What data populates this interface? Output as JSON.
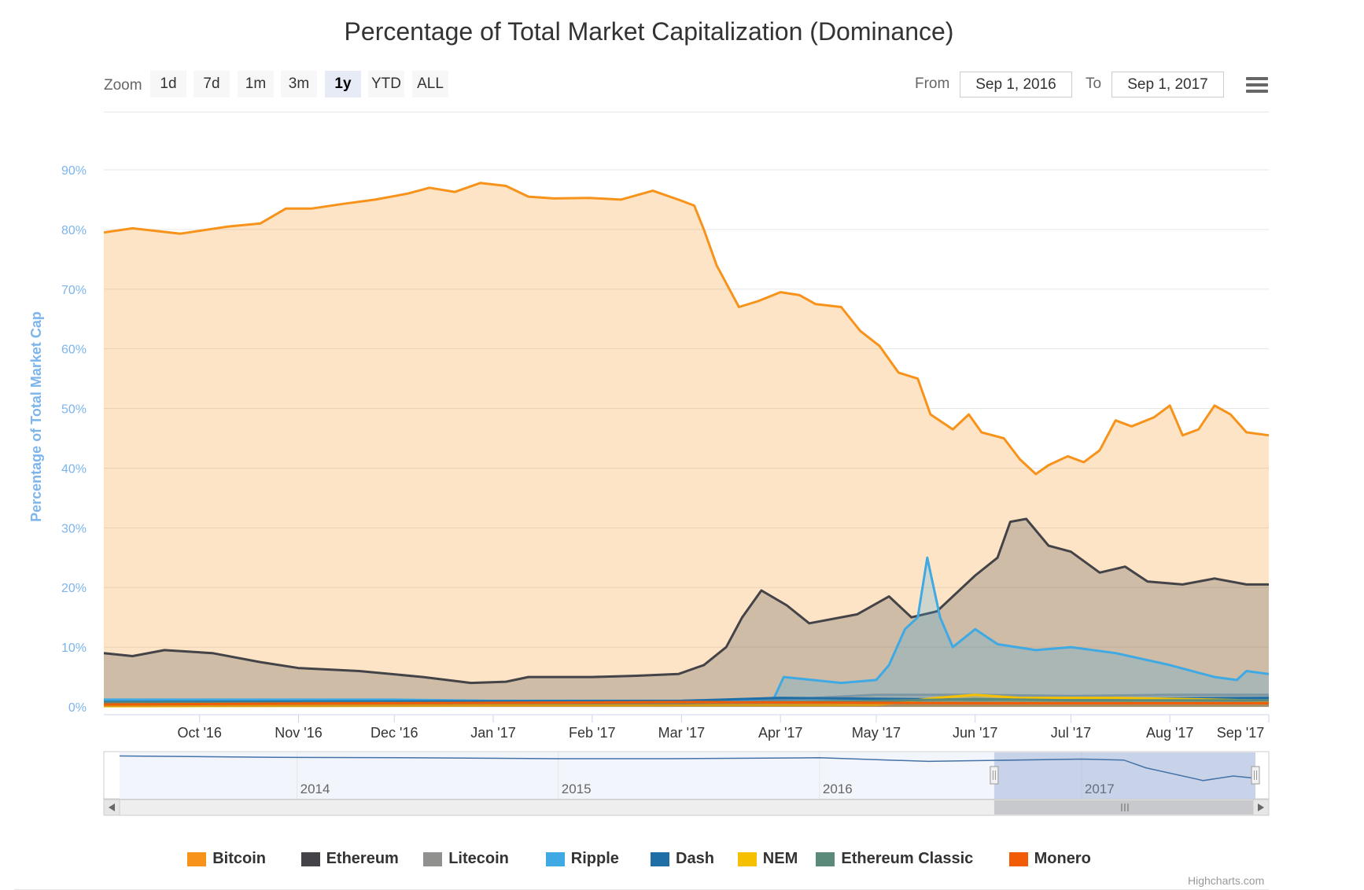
{
  "toolbar": {
    "zoom_label": "Zoom",
    "zoom_buttons": [
      "1d",
      "7d",
      "1m",
      "3m",
      "1y",
      "YTD",
      "ALL"
    ],
    "zoom_active": "1y",
    "from_label": "From",
    "from_value": "Sep 1, 2016",
    "to_label": "To",
    "to_value": "Sep 1, 2017",
    "menu_icon": "hamburger-menu-icon"
  },
  "credits": "Highcharts.com",
  "chart_data": {
    "type": "area",
    "title": "Percentage of Total Market Capitalization (Dominance)",
    "ylabel": "Percentage of Total Market Cap",
    "ylim": [
      0,
      90
    ],
    "yticks": [
      "0%",
      "10%",
      "20%",
      "30%",
      "40%",
      "50%",
      "60%",
      "70%",
      "80%",
      "90%"
    ],
    "x_range": [
      "2016-09-01",
      "2017-09-01"
    ],
    "xticks": [
      {
        "label": "Oct '16",
        "date": "2016-10-01"
      },
      {
        "label": "Nov '16",
        "date": "2016-11-01"
      },
      {
        "label": "Dec '16",
        "date": "2016-12-01"
      },
      {
        "label": "Jan '17",
        "date": "2017-01-01"
      },
      {
        "label": "Feb '17",
        "date": "2017-02-01"
      },
      {
        "label": "Mar '17",
        "date": "2017-03-01"
      },
      {
        "label": "Apr '17",
        "date": "2017-04-01"
      },
      {
        "label": "May '17",
        "date": "2017-05-01"
      },
      {
        "label": "Jun '17",
        "date": "2017-06-01"
      },
      {
        "label": "Jul '17",
        "date": "2017-07-01"
      },
      {
        "label": "Aug '17",
        "date": "2017-08-01"
      },
      {
        "label": "Sep '17",
        "date": "2017-09-01"
      }
    ],
    "grid": true,
    "legend_position": "bottom",
    "series": [
      {
        "name": "Bitcoin",
        "color": "#f7931a",
        "points": [
          [
            "2016-09-01",
            79.5
          ],
          [
            "2016-09-10",
            80.2
          ],
          [
            "2016-09-25",
            79.3
          ],
          [
            "2016-10-10",
            80.5
          ],
          [
            "2016-10-20",
            81.0
          ],
          [
            "2016-10-28",
            83.5
          ],
          [
            "2016-11-05",
            83.5
          ],
          [
            "2016-11-15",
            84.3
          ],
          [
            "2016-11-25",
            85.0
          ],
          [
            "2016-12-05",
            86.0
          ],
          [
            "2016-12-12",
            87.0
          ],
          [
            "2016-12-20",
            86.3
          ],
          [
            "2016-12-28",
            87.8
          ],
          [
            "2017-01-05",
            87.3
          ],
          [
            "2017-01-12",
            85.5
          ],
          [
            "2017-01-20",
            85.2
          ],
          [
            "2017-01-31",
            85.3
          ],
          [
            "2017-02-10",
            85.0
          ],
          [
            "2017-02-20",
            86.5
          ],
          [
            "2017-02-28",
            85.0
          ],
          [
            "2017-03-05",
            84.0
          ],
          [
            "2017-03-08",
            80.0
          ],
          [
            "2017-03-12",
            74.0
          ],
          [
            "2017-03-15",
            71.0
          ],
          [
            "2017-03-19",
            67.0
          ],
          [
            "2017-03-25",
            68.0
          ],
          [
            "2017-04-01",
            69.5
          ],
          [
            "2017-04-07",
            69.0
          ],
          [
            "2017-04-12",
            67.5
          ],
          [
            "2017-04-20",
            67.0
          ],
          [
            "2017-04-26",
            63.0
          ],
          [
            "2017-05-02",
            60.5
          ],
          [
            "2017-05-08",
            56.0
          ],
          [
            "2017-05-14",
            55.0
          ],
          [
            "2017-05-18",
            49.0
          ],
          [
            "2017-05-25",
            46.5
          ],
          [
            "2017-05-30",
            49.0
          ],
          [
            "2017-06-03",
            46.0
          ],
          [
            "2017-06-10",
            45.0
          ],
          [
            "2017-06-15",
            41.5
          ],
          [
            "2017-06-20",
            39.0
          ],
          [
            "2017-06-24",
            40.5
          ],
          [
            "2017-06-30",
            42.0
          ],
          [
            "2017-07-05",
            41.0
          ],
          [
            "2017-07-10",
            43.0
          ],
          [
            "2017-07-15",
            48.0
          ],
          [
            "2017-07-20",
            47.0
          ],
          [
            "2017-07-27",
            48.5
          ],
          [
            "2017-08-01",
            50.5
          ],
          [
            "2017-08-05",
            45.5
          ],
          [
            "2017-08-10",
            46.5
          ],
          [
            "2017-08-15",
            50.5
          ],
          [
            "2017-08-20",
            49.0
          ],
          [
            "2017-08-25",
            46.0
          ],
          [
            "2017-09-01",
            45.5
          ]
        ]
      },
      {
        "name": "Ethereum",
        "color": "#434348",
        "points": [
          [
            "2016-09-01",
            9.0
          ],
          [
            "2016-09-10",
            8.5
          ],
          [
            "2016-09-20",
            9.5
          ],
          [
            "2016-10-05",
            9.0
          ],
          [
            "2016-10-20",
            7.5
          ],
          [
            "2016-11-01",
            6.5
          ],
          [
            "2016-11-20",
            6.0
          ],
          [
            "2016-12-10",
            5.0
          ],
          [
            "2016-12-25",
            4.0
          ],
          [
            "2017-01-05",
            4.2
          ],
          [
            "2017-01-12",
            5.0
          ],
          [
            "2017-02-01",
            5.0
          ],
          [
            "2017-02-15",
            5.2
          ],
          [
            "2017-02-28",
            5.5
          ],
          [
            "2017-03-08",
            7.0
          ],
          [
            "2017-03-15",
            10.0
          ],
          [
            "2017-03-20",
            15.0
          ],
          [
            "2017-03-26",
            19.5
          ],
          [
            "2017-04-03",
            17.0
          ],
          [
            "2017-04-10",
            14.0
          ],
          [
            "2017-04-25",
            15.5
          ],
          [
            "2017-05-05",
            18.5
          ],
          [
            "2017-05-12",
            15.0
          ],
          [
            "2017-05-20",
            16.0
          ],
          [
            "2017-06-01",
            22.0
          ],
          [
            "2017-06-08",
            25.0
          ],
          [
            "2017-06-12",
            31.0
          ],
          [
            "2017-06-17",
            31.5
          ],
          [
            "2017-06-24",
            27.0
          ],
          [
            "2017-07-01",
            26.0
          ],
          [
            "2017-07-10",
            22.5
          ],
          [
            "2017-07-18",
            23.5
          ],
          [
            "2017-07-25",
            21.0
          ],
          [
            "2017-08-05",
            20.5
          ],
          [
            "2017-08-15",
            21.5
          ],
          [
            "2017-08-25",
            20.5
          ],
          [
            "2017-09-01",
            20.5
          ]
        ]
      },
      {
        "name": "Litecoin",
        "color": "#90918f",
        "points": [
          [
            "2016-09-01",
            1.0
          ],
          [
            "2017-01-01",
            0.9
          ],
          [
            "2017-03-15",
            0.8
          ],
          [
            "2017-04-01",
            1.2
          ],
          [
            "2017-05-01",
            2.0
          ],
          [
            "2017-06-01",
            2.0
          ],
          [
            "2017-07-01",
            1.8
          ],
          [
            "2017-08-01",
            2.0
          ],
          [
            "2017-09-01",
            2.0
          ]
        ]
      },
      {
        "name": "Ripple",
        "color": "#3fa9e4",
        "points": [
          [
            "2016-09-01",
            1.2
          ],
          [
            "2016-12-01",
            1.2
          ],
          [
            "2017-01-01",
            1.0
          ],
          [
            "2017-03-15",
            1.0
          ],
          [
            "2017-03-30",
            1.5
          ],
          [
            "2017-04-02",
            5.0
          ],
          [
            "2017-04-20",
            4.0
          ],
          [
            "2017-05-01",
            4.5
          ],
          [
            "2017-05-05",
            7.0
          ],
          [
            "2017-05-10",
            13.0
          ],
          [
            "2017-05-14",
            15.0
          ],
          [
            "2017-05-17",
            25.0
          ],
          [
            "2017-05-21",
            15.0
          ],
          [
            "2017-05-25",
            10.0
          ],
          [
            "2017-06-01",
            13.0
          ],
          [
            "2017-06-08",
            10.5
          ],
          [
            "2017-06-20",
            9.5
          ],
          [
            "2017-07-01",
            10.0
          ],
          [
            "2017-07-15",
            9.0
          ],
          [
            "2017-08-01",
            7.0
          ],
          [
            "2017-08-15",
            5.0
          ],
          [
            "2017-08-22",
            4.5
          ],
          [
            "2017-08-25",
            6.0
          ],
          [
            "2017-09-01",
            5.5
          ]
        ]
      },
      {
        "name": "Dash",
        "color": "#1f6fa6",
        "points": [
          [
            "2016-09-01",
            0.8
          ],
          [
            "2017-03-01",
            1.0
          ],
          [
            "2017-04-01",
            1.5
          ],
          [
            "2017-06-01",
            1.2
          ],
          [
            "2017-09-01",
            1.5
          ]
        ]
      },
      {
        "name": "NEM",
        "color": "#f5c000",
        "points": [
          [
            "2016-09-01",
            0.1
          ],
          [
            "2017-05-01",
            0.3
          ],
          [
            "2017-05-20",
            1.5
          ],
          [
            "2017-06-01",
            2.0
          ],
          [
            "2017-06-15",
            1.5
          ],
          [
            "2017-07-15",
            1.5
          ],
          [
            "2017-08-15",
            1.2
          ],
          [
            "2017-09-01",
            1.0
          ]
        ]
      },
      {
        "name": "Ethereum Classic",
        "color": "#5c8a7a",
        "points": [
          [
            "2016-09-01",
            0.7
          ],
          [
            "2017-03-01",
            0.6
          ],
          [
            "2017-05-01",
            1.0
          ],
          [
            "2017-06-01",
            1.3
          ],
          [
            "2017-07-01",
            1.1
          ],
          [
            "2017-09-01",
            1.1
          ]
        ]
      },
      {
        "name": "Monero",
        "color": "#f15c06",
        "points": [
          [
            "2016-09-01",
            0.4
          ],
          [
            "2016-12-01",
            0.6
          ],
          [
            "2017-03-01",
            0.8
          ],
          [
            "2017-06-01",
            0.6
          ],
          [
            "2017-09-01",
            0.6
          ]
        ]
      }
    ],
    "navigator": {
      "series_name": "Bitcoin",
      "year_labels": [
        "2014",
        "2015",
        "2016",
        "2017"
      ],
      "years": [
        2014,
        2015,
        2016,
        2017
      ],
      "x_range": [
        "2013-04-28",
        "2017-09-01"
      ],
      "selected_range": [
        "2016-09-01",
        "2017-09-01"
      ],
      "points": [
        [
          "2013-04-28",
          94
        ],
        [
          "2013-12-01",
          91
        ],
        [
          "2014-06-01",
          90
        ],
        [
          "2015-01-01",
          88
        ],
        [
          "2015-06-01",
          88
        ],
        [
          "2016-01-01",
          90
        ],
        [
          "2016-06-01",
          82
        ],
        [
          "2017-01-01",
          87
        ],
        [
          "2017-03-01",
          85
        ],
        [
          "2017-04-01",
          68
        ],
        [
          "2017-06-20",
          40
        ],
        [
          "2017-08-01",
          50
        ],
        [
          "2017-09-01",
          45
        ]
      ]
    }
  }
}
